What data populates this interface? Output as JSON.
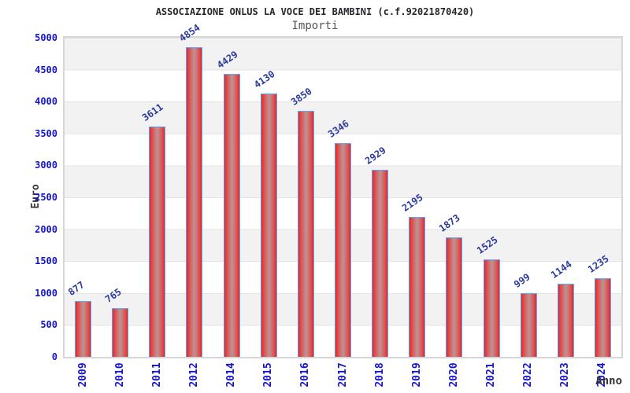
{
  "title": "ASSOCIAZIONE ONLUS LA VOCE DEI BAMBINI (c.f.92021870420)",
  "subtitle": "Importi",
  "ylabel": "Euro",
  "xlabel": "Anno",
  "colors": {
    "bar_fill": "#e02222",
    "bar_highlight": "#c18c8c",
    "bar_border": "#57aaff",
    "axis_text": "#1414cc",
    "value_label": "#2b3a9e",
    "band_gray": "#f2f2f2",
    "band_white": "#ffffff",
    "plot_border": "#d6d6d6",
    "title_text": "#26262b",
    "subtitle_text": "#555555",
    "axis_title_text": "#333333"
  },
  "chart_data": {
    "type": "bar",
    "title": "ASSOCIAZIONE ONLUS LA VOCE DEI BAMBINI (c.f.92021870420)",
    "subtitle": "Importi",
    "xlabel": "Anno",
    "ylabel": "Euro",
    "categories": [
      "2009",
      "2010",
      "2011",
      "2012",
      "2014",
      "2015",
      "2016",
      "2017",
      "2018",
      "2019",
      "2020",
      "2021",
      "2022",
      "2023",
      "2024"
    ],
    "values": [
      877,
      765,
      3611,
      4854,
      4429,
      4130,
      3850,
      3346,
      2929,
      2195,
      1873,
      1525,
      999,
      1144,
      1235
    ],
    "ylim": [
      0,
      5000
    ],
    "ytick_step": 500,
    "yticks": [
      "0",
      "500",
      "1000",
      "1500",
      "2000",
      "2500",
      "3000",
      "3500",
      "4000",
      "4500",
      "5000"
    ],
    "grid": "horizontal-alternating-bands",
    "legend": "none",
    "bar_labels_rotated": true,
    "xtick_labels_rotated": true
  }
}
